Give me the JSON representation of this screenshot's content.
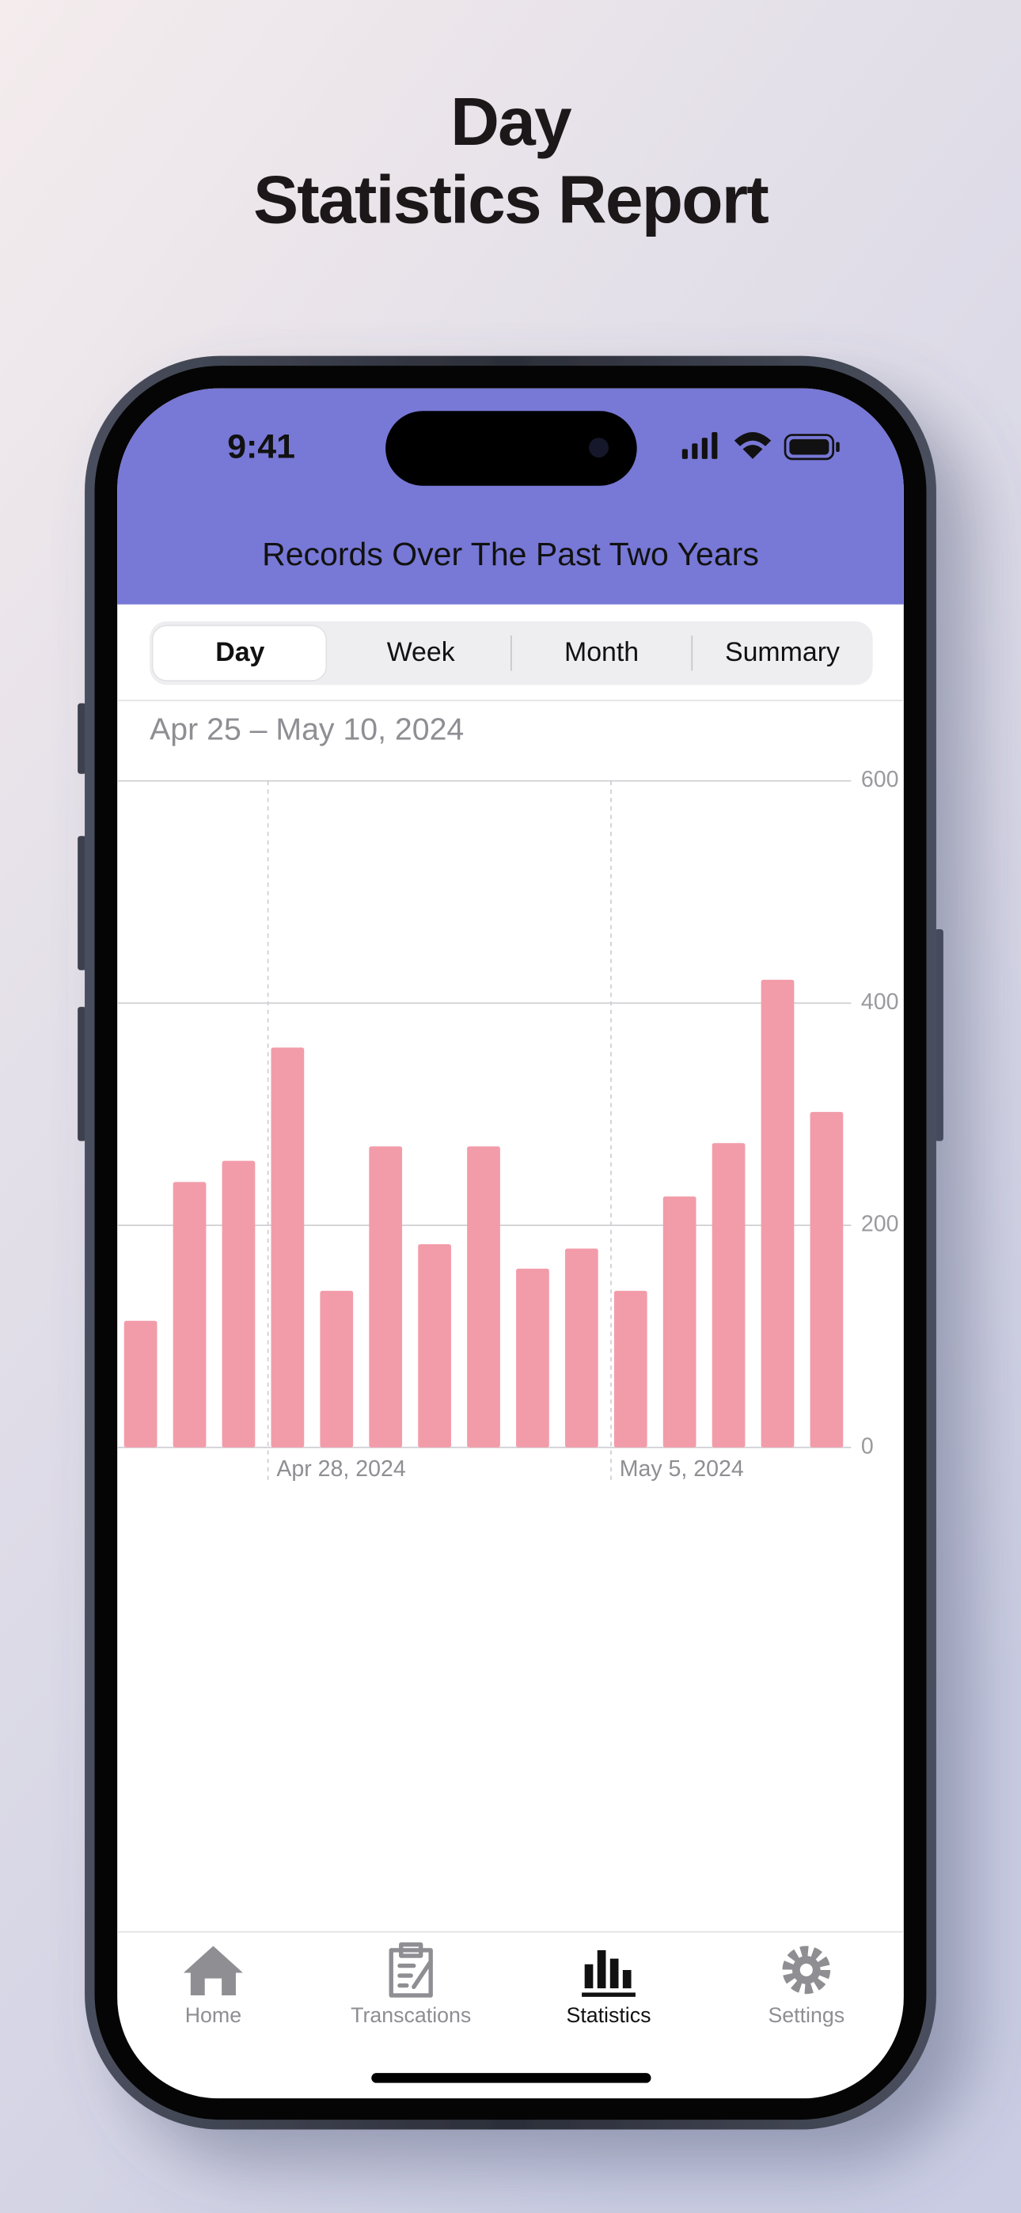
{
  "headline": [
    "Day",
    "Statistics Report"
  ],
  "status_time": "9:41",
  "header_title": "Records Over The Past Two Years",
  "segments": [
    "Day",
    "Week",
    "Month",
    "Summary"
  ],
  "selected_segment": 0,
  "tabs": [
    "Home",
    "Transcations",
    "Statistics",
    "Settings"
  ],
  "active_tab": 2,
  "chart_data": {
    "type": "bar",
    "subtitle": "Apr 25 – May 10, 2024",
    "categories": [
      null,
      null,
      null,
      "Apr 28, 2024",
      null,
      null,
      null,
      null,
      null,
      null,
      "May 5, 2024",
      null,
      null,
      null,
      null
    ],
    "values": [
      114,
      239,
      258,
      360,
      141,
      271,
      183,
      271,
      161,
      179,
      141,
      226,
      274,
      421,
      302
    ],
    "color": "#f29caa",
    "ylim": [
      0,
      600
    ],
    "yticks": [
      0,
      200,
      400,
      600
    ],
    "grid": true
  }
}
